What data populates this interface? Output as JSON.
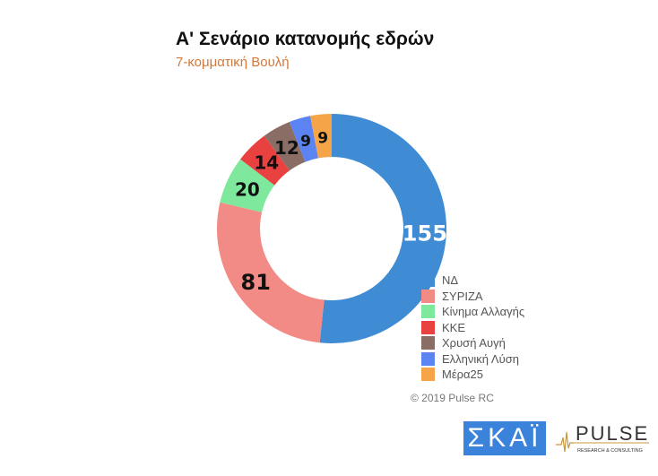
{
  "chart_data": {
    "type": "pie",
    "donut": true,
    "title": "Α' Σενάριο κατανομής εδρών",
    "subtitle": "7-κομματική Βουλή",
    "categories": [
      "ΝΔ",
      "ΣΥΡΙΖΑ",
      "Κίνημα Αλλαγής",
      "ΚΚΕ",
      "Χρυσή Αυγή",
      "Ελληνική Λύση",
      "Μέρα25"
    ],
    "values": [
      155,
      81,
      20,
      14,
      12,
      9,
      9
    ],
    "colors": [
      "#3f8bd4",
      "#f28b86",
      "#7ee89d",
      "#e8413f",
      "#8a6e66",
      "#5b84f2",
      "#f5a447"
    ],
    "legend_position": "bottom-right"
  },
  "credit": "© 2019 Pulse RC",
  "logos": {
    "skai": "ΣΚΑΪ",
    "pulse": "PULSE",
    "pulse_sub": "RESEARCH & CONSULTING"
  }
}
